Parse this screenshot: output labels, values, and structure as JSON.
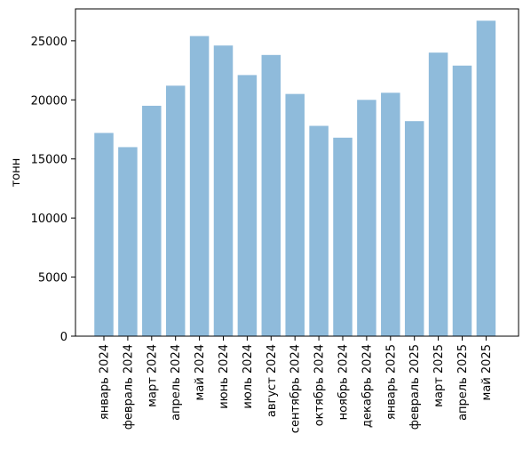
{
  "chart_data": {
    "type": "bar",
    "title": "",
    "xlabel": "",
    "ylabel": "тонн",
    "ylim": [
      0,
      27700
    ],
    "yticks": [
      0,
      5000,
      10000,
      15000,
      20000,
      25000
    ],
    "grid": false,
    "bar_color": "#8fbbdb",
    "categories": [
      "январь 2024",
      "февраль 2024",
      "март 2024",
      "апрель 2024",
      "май 2024",
      "июнь 2024",
      "июль 2024",
      "август 2024",
      "сентябрь 2024",
      "октябрь 2024",
      "ноябрь 2024",
      "декабрь 2024",
      "январь 2025",
      "февраль 2025",
      "март 2025",
      "апрель 2025",
      "май 2025"
    ],
    "values": [
      17200,
      16000,
      19500,
      21200,
      25400,
      24600,
      22100,
      23800,
      20500,
      17800,
      16800,
      20000,
      20600,
      18200,
      24000,
      22900,
      26700
    ]
  }
}
